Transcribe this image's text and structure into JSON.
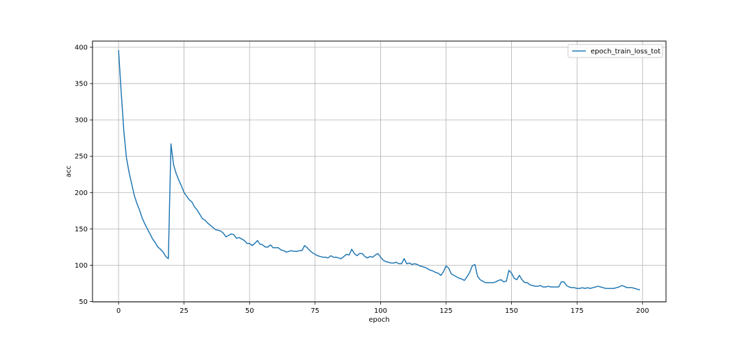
{
  "chart_data": {
    "type": "line",
    "title": "",
    "xlabel": "epoch",
    "ylabel": "acc",
    "xlim": [
      -9.95,
      208.95
    ],
    "ylim": [
      49.5,
      408.5
    ],
    "xticks": [
      0,
      25,
      50,
      75,
      100,
      125,
      150,
      175,
      200
    ],
    "yticks": [
      50,
      100,
      150,
      200,
      250,
      300,
      350,
      400
    ],
    "grid": true,
    "legend_position": "top-right",
    "series": [
      {
        "name": "epoch_train_loss_tot",
        "color": "#1f77b4",
        "x": [
          0,
          1,
          2,
          3,
          4,
          5,
          6,
          7,
          8,
          9,
          10,
          11,
          12,
          13,
          14,
          15,
          16,
          17,
          18,
          19,
          20,
          21,
          22,
          23,
          24,
          25,
          26,
          27,
          28,
          29,
          30,
          31,
          32,
          33,
          34,
          35,
          36,
          37,
          38,
          39,
          40,
          41,
          42,
          43,
          44,
          45,
          46,
          47,
          48,
          49,
          50,
          51,
          52,
          53,
          54,
          55,
          56,
          57,
          58,
          59,
          60,
          61,
          62,
          63,
          64,
          65,
          66,
          67,
          68,
          69,
          70,
          71,
          72,
          73,
          74,
          75,
          76,
          77,
          78,
          79,
          80,
          81,
          82,
          83,
          84,
          85,
          86,
          87,
          88,
          89,
          90,
          91,
          92,
          93,
          94,
          95,
          96,
          97,
          98,
          99,
          100,
          101,
          102,
          103,
          104,
          105,
          106,
          107,
          108,
          109,
          110,
          111,
          112,
          113,
          114,
          115,
          116,
          117,
          118,
          119,
          120,
          121,
          122,
          123,
          124,
          125,
          126,
          127,
          128,
          129,
          130,
          131,
          132,
          133,
          134,
          135,
          136,
          137,
          138,
          139,
          140,
          141,
          142,
          143,
          144,
          145,
          146,
          147,
          148,
          149,
          150,
          151,
          152,
          153,
          154,
          155,
          156,
          157,
          158,
          159,
          160,
          161,
          162,
          163,
          164,
          165,
          166,
          167,
          168,
          169,
          170,
          171,
          172,
          173,
          174,
          175,
          176,
          177,
          178,
          179,
          180,
          181,
          182,
          183,
          184,
          185,
          186,
          187,
          188,
          189,
          190,
          191,
          192,
          193,
          194,
          195,
          196,
          197,
          198,
          199
        ],
        "values": [
          396,
          338,
          285,
          248,
          228,
          212,
          196,
          185,
          176,
          165,
          157,
          150,
          143,
          136,
          131,
          125,
          122,
          118,
          112,
          109,
          267,
          238,
          226,
          217,
          209,
          200,
          195,
          190,
          187,
          180,
          176,
          170,
          164,
          162,
          158,
          155,
          152,
          149,
          148,
          147,
          144,
          139,
          141,
          143,
          142,
          137,
          138,
          136,
          134,
          130,
          130,
          127,
          130,
          134,
          129,
          128,
          125,
          125,
          128,
          124,
          124,
          124,
          121,
          120,
          118,
          119,
          120,
          119,
          119,
          120,
          120,
          127,
          124,
          120,
          117,
          115,
          113,
          112,
          111,
          111,
          110,
          113,
          111,
          111,
          110,
          109,
          112,
          115,
          114,
          122,
          116,
          113,
          116,
          116,
          112,
          110,
          112,
          111,
          114,
          116,
          111,
          107,
          105,
          104,
          103,
          103,
          104,
          102,
          102,
          109,
          102,
          103,
          101,
          102,
          101,
          99,
          98,
          97,
          95,
          93,
          92,
          90,
          89,
          86,
          91,
          99,
          96,
          88,
          86,
          84,
          82,
          81,
          79,
          84,
          90,
          99,
          101,
          85,
          80,
          78,
          76,
          76,
          76,
          76,
          77,
          79,
          80,
          77,
          78,
          93,
          89,
          82,
          80,
          86,
          80,
          76,
          76,
          73,
          72,
          71,
          71,
          72,
          70,
          70,
          71,
          70,
          70,
          70,
          70,
          77,
          77,
          72,
          70,
          69,
          69,
          68,
          68,
          69,
          68,
          69,
          68,
          69,
          70,
          71,
          70,
          69,
          68,
          68,
          68,
          68,
          69,
          70,
          72,
          71,
          69,
          69,
          69,
          68,
          67,
          66
        ]
      }
    ]
  }
}
